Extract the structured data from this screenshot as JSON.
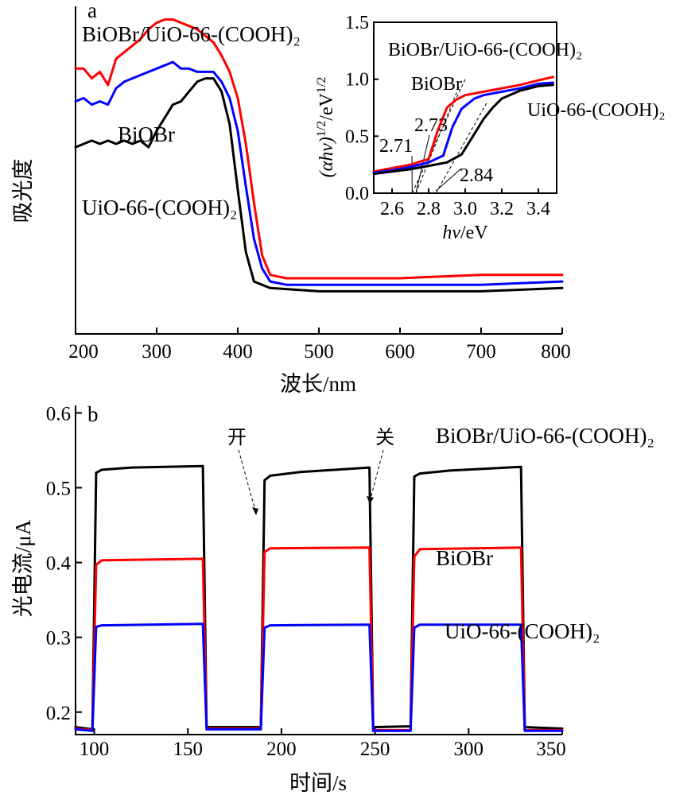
{
  "chart_data": [
    {
      "panel": "a",
      "type": "line",
      "xlabel": "波长/nm",
      "ylabel": "吸光度",
      "xlim": [
        200,
        800
      ],
      "x_ticks": [
        200,
        300,
        400,
        500,
        600,
        700,
        800
      ],
      "y_relative": true,
      "series": [
        {
          "name": "BiOBr/UiO-66-(COOH)₂",
          "color": "#ff0000",
          "points": [
            [
              200,
              0.81
            ],
            [
              210,
              0.81
            ],
            [
              220,
              0.78
            ],
            [
              230,
              0.8
            ],
            [
              240,
              0.76
            ],
            [
              250,
              0.84
            ],
            [
              260,
              0.86
            ],
            [
              270,
              0.88
            ],
            [
              280,
              0.9
            ],
            [
              290,
              0.93
            ],
            [
              300,
              0.95
            ],
            [
              310,
              0.96
            ],
            [
              320,
              0.96
            ],
            [
              330,
              0.95
            ],
            [
              340,
              0.94
            ],
            [
              350,
              0.93
            ],
            [
              360,
              0.91
            ],
            [
              370,
              0.89
            ],
            [
              380,
              0.85
            ],
            [
              390,
              0.8
            ],
            [
              400,
              0.72
            ],
            [
              410,
              0.58
            ],
            [
              420,
              0.4
            ],
            [
              430,
              0.24
            ],
            [
              440,
              0.18
            ],
            [
              460,
              0.17
            ],
            [
              500,
              0.17
            ],
            [
              600,
              0.17
            ],
            [
              700,
              0.18
            ],
            [
              800,
              0.18
            ]
          ]
        },
        {
          "name": "BiOBr",
          "color": "#0000ff",
          "points": [
            [
              200,
              0.71
            ],
            [
              210,
              0.72
            ],
            [
              220,
              0.7
            ],
            [
              230,
              0.71
            ],
            [
              240,
              0.7
            ],
            [
              250,
              0.75
            ],
            [
              260,
              0.77
            ],
            [
              270,
              0.78
            ],
            [
              280,
              0.79
            ],
            [
              290,
              0.8
            ],
            [
              300,
              0.81
            ],
            [
              310,
              0.82
            ],
            [
              320,
              0.83
            ],
            [
              330,
              0.81
            ],
            [
              340,
              0.81
            ],
            [
              350,
              0.8
            ],
            [
              360,
              0.8
            ],
            [
              370,
              0.8
            ],
            [
              380,
              0.77
            ],
            [
              390,
              0.72
            ],
            [
              400,
              0.62
            ],
            [
              410,
              0.45
            ],
            [
              420,
              0.29
            ],
            [
              430,
              0.2
            ],
            [
              440,
              0.16
            ],
            [
              460,
              0.15
            ],
            [
              500,
              0.15
            ],
            [
              600,
              0.15
            ],
            [
              700,
              0.15
            ],
            [
              800,
              0.16
            ]
          ]
        },
        {
          "name": "UiO-66-(COOH)₂",
          "color": "#000000",
          "points": [
            [
              200,
              0.57
            ],
            [
              210,
              0.58
            ],
            [
              220,
              0.59
            ],
            [
              230,
              0.58
            ],
            [
              240,
              0.59
            ],
            [
              250,
              0.58
            ],
            [
              260,
              0.59
            ],
            [
              270,
              0.58
            ],
            [
              280,
              0.59
            ],
            [
              290,
              0.57
            ],
            [
              300,
              0.62
            ],
            [
              310,
              0.66
            ],
            [
              320,
              0.7
            ],
            [
              330,
              0.71
            ],
            [
              340,
              0.74
            ],
            [
              350,
              0.77
            ],
            [
              360,
              0.78
            ],
            [
              370,
              0.78
            ],
            [
              380,
              0.74
            ],
            [
              390,
              0.64
            ],
            [
              400,
              0.44
            ],
            [
              410,
              0.25
            ],
            [
              420,
              0.16
            ],
            [
              440,
              0.14
            ],
            [
              500,
              0.13
            ],
            [
              600,
              0.13
            ],
            [
              700,
              0.13
            ],
            [
              800,
              0.14
            ]
          ]
        }
      ],
      "labels": {
        "s1": "BiOBr/UiO-66-(COOH)₂",
        "s2": "BiOBr",
        "s3": "UiO-66-(COOH)₂"
      },
      "inset": {
        "type": "line",
        "xlabel_main": "hv",
        "xlabel_unit": "/eV",
        "ylabel_main": "(αhv)",
        "ylabel_sup1": "1/2",
        "ylabel_mid": "/eV",
        "ylabel_sup2": "1/2",
        "xlim": [
          2.5,
          3.5
        ],
        "ylim": [
          0,
          1.5
        ],
        "x_ticks": [
          "2.6",
          "2.8",
          "3.0",
          "3.2",
          "3.4"
        ],
        "y_ticks": [
          "0.0",
          "0.5",
          "1.0",
          "1.5"
        ],
        "annotations": [
          "2.71",
          "2.73",
          "2.84"
        ],
        "series": [
          {
            "name": "BiOBr/UiO-66-(COOH)₂",
            "color": "#ff0000",
            "points": [
              [
                2.5,
                0.19
              ],
              [
                2.6,
                0.22
              ],
              [
                2.7,
                0.25
              ],
              [
                2.8,
                0.3
              ],
              [
                2.85,
                0.55
              ],
              [
                2.9,
                0.75
              ],
              [
                2.95,
                0.82
              ],
              [
                3.0,
                0.86
              ],
              [
                3.1,
                0.89
              ],
              [
                3.2,
                0.92
              ],
              [
                3.3,
                0.95
              ],
              [
                3.4,
                0.99
              ],
              [
                3.48,
                1.02
              ]
            ]
          },
          {
            "name": "BiOBr",
            "color": "#0000ff",
            "points": [
              [
                2.5,
                0.18
              ],
              [
                2.6,
                0.2
              ],
              [
                2.7,
                0.23
              ],
              [
                2.8,
                0.27
              ],
              [
                2.88,
                0.33
              ],
              [
                2.93,
                0.58
              ],
              [
                2.98,
                0.74
              ],
              [
                3.05,
                0.83
              ],
              [
                3.1,
                0.86
              ],
              [
                3.2,
                0.89
              ],
              [
                3.3,
                0.92
              ],
              [
                3.4,
                0.96
              ],
              [
                3.48,
                0.97
              ]
            ]
          },
          {
            "name": "UiO-66-(COOH)₂",
            "color": "#000000",
            "points": [
              [
                2.5,
                0.17
              ],
              [
                2.6,
                0.19
              ],
              [
                2.7,
                0.21
              ],
              [
                2.8,
                0.24
              ],
              [
                2.9,
                0.27
              ],
              [
                2.98,
                0.34
              ],
              [
                3.05,
                0.52
              ],
              [
                3.1,
                0.65
              ],
              [
                3.15,
                0.75
              ],
              [
                3.2,
                0.83
              ],
              [
                3.3,
                0.9
              ],
              [
                3.4,
                0.94
              ],
              [
                3.48,
                0.95
              ]
            ]
          }
        ],
        "labels": {
          "s1": "BiOBr/UiO-66-(COOH)₂",
          "s2": "BiOBr",
          "s3": "UiO-66-(COOH)₂"
        }
      }
    },
    {
      "panel": "b",
      "type": "line",
      "xlabel": "时间/s",
      "ylabel": "光电流/μA",
      "xlim": [
        90,
        350
      ],
      "ylim": [
        0.17,
        0.61
      ],
      "x_ticks": [
        100,
        150,
        200,
        250,
        300,
        350
      ],
      "y_ticks": [
        "0.2",
        "0.3",
        "0.4",
        "0.5",
        "0.6"
      ],
      "on_label": "开",
      "off_label": "关",
      "series": [
        {
          "name": "BiOBr/UiO-66-(COOH)₂",
          "color": "#000000",
          "points": [
            [
              90,
              0.18
            ],
            [
              99,
              0.177
            ],
            [
              101,
              0.52
            ],
            [
              104,
              0.524
            ],
            [
              120,
              0.527
            ],
            [
              158,
              0.529
            ],
            [
              160,
              0.18
            ],
            [
              189,
              0.18
            ],
            [
              191,
              0.51
            ],
            [
              194,
              0.516
            ],
            [
              210,
              0.521
            ],
            [
              247,
              0.527
            ],
            [
              249,
              0.18
            ],
            [
              269,
              0.181
            ],
            [
              271,
              0.515
            ],
            [
              274,
              0.519
            ],
            [
              290,
              0.523
            ],
            [
              328,
              0.528
            ],
            [
              330,
              0.18
            ],
            [
              350,
              0.178
            ]
          ]
        },
        {
          "name": "BiOBr",
          "color": "#ff0000",
          "points": [
            [
              90,
              0.178
            ],
            [
              99,
              0.176
            ],
            [
              101,
              0.397
            ],
            [
              104,
              0.403
            ],
            [
              158,
              0.405
            ],
            [
              160,
              0.178
            ],
            [
              189,
              0.178
            ],
            [
              191,
              0.414
            ],
            [
              194,
              0.419
            ],
            [
              247,
              0.42
            ],
            [
              249,
              0.176
            ],
            [
              269,
              0.176
            ],
            [
              271,
              0.408
            ],
            [
              274,
              0.418
            ],
            [
              328,
              0.42
            ],
            [
              330,
              0.176
            ],
            [
              350,
              0.176
            ]
          ]
        },
        {
          "name": "UiO-66-(COOH)₂",
          "color": "#0000ff",
          "points": [
            [
              90,
              0.177
            ],
            [
              99,
              0.175
            ],
            [
              101,
              0.314
            ],
            [
              104,
              0.316
            ],
            [
              158,
              0.318
            ],
            [
              160,
              0.177
            ],
            [
              189,
              0.177
            ],
            [
              191,
              0.313
            ],
            [
              194,
              0.316
            ],
            [
              247,
              0.317
            ],
            [
              249,
              0.175
            ],
            [
              269,
              0.175
            ],
            [
              271,
              0.313
            ],
            [
              274,
              0.317
            ],
            [
              328,
              0.317
            ],
            [
              330,
              0.175
            ],
            [
              350,
              0.175
            ]
          ]
        }
      ],
      "labels": {
        "s1": "BiOBr/UiO-66-(COOH)₂",
        "s2": "BiOBr",
        "s3": "UiO-66-(COOH)₂"
      }
    }
  ],
  "panel_labels": {
    "a": "a",
    "b": "b"
  }
}
